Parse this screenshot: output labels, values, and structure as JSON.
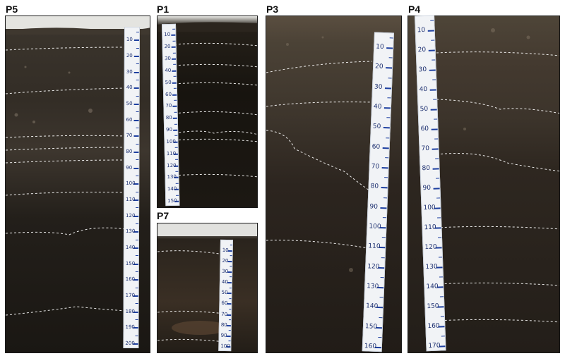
{
  "panels": [
    {
      "id": "p5",
      "label": "P5",
      "scale": {
        "start": 10,
        "end": 200,
        "step": 10
      }
    },
    {
      "id": "p1",
      "label": "P1",
      "scale": {
        "start": 10,
        "end": 150,
        "step": 10
      }
    },
    {
      "id": "p7",
      "label": "P7",
      "scale": {
        "start": 10,
        "end": 100,
        "step": 10
      }
    },
    {
      "id": "p3",
      "label": "P3",
      "scale": {
        "start": 10,
        "end": 160,
        "step": 10
      }
    },
    {
      "id": "p4",
      "label": "P4",
      "scale": {
        "start": 10,
        "end": 170,
        "step": 10
      }
    }
  ],
  "colors": {
    "soil_dark": "#1c1814",
    "soil_mid": "#2c261f",
    "soil_light": "#4a4136",
    "horizon_line": "#ffffff",
    "tape_marks": "#1d3fa0"
  }
}
